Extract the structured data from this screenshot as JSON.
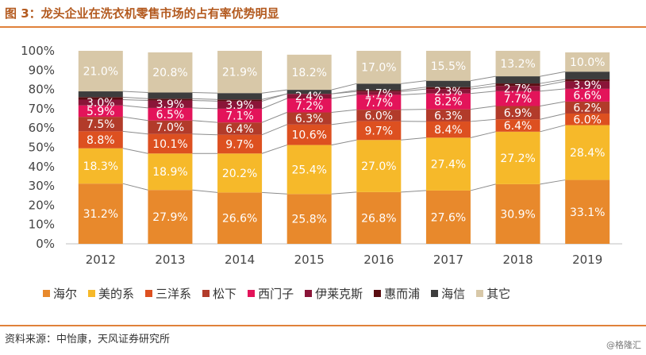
{
  "header": {
    "title": "图 3：龙头企业在洗衣机零售市场的占有率优势明显"
  },
  "footer": {
    "source": "资料来源：中怡康，天风证券研究所",
    "watermark": "@格隆汇"
  },
  "chart_data": {
    "type": "bar",
    "stacked": true,
    "title": "",
    "xlabel": "",
    "ylabel": "",
    "ylim": [
      0,
      100
    ],
    "yticks": [
      "0%",
      "10%",
      "20%",
      "30%",
      "40%",
      "50%",
      "60%",
      "70%",
      "80%",
      "90%",
      "100%"
    ],
    "categories": [
      "2012",
      "2013",
      "2014",
      "2015",
      "2016",
      "2017",
      "2018",
      "2019"
    ],
    "series": [
      {
        "name": "海尔",
        "color": "#e8892c",
        "label_color": "#ffffff",
        "values": [
          31.2,
          27.9,
          26.6,
          25.8,
          26.8,
          27.6,
          30.9,
          33.1
        ],
        "labels": [
          "31.2%",
          "27.9%",
          "26.6%",
          "25.8%",
          "26.8%",
          "27.6%",
          "30.9%",
          "33.1%"
        ]
      },
      {
        "name": "美的系",
        "color": "#f6b92a",
        "label_color": "#ffffff",
        "values": [
          18.3,
          18.9,
          20.2,
          25.4,
          27.0,
          27.4,
          27.2,
          28.4
        ],
        "labels": [
          "18.3%",
          "18.9%",
          "20.2%",
          "25.4%",
          "27.0%",
          "27.4%",
          "27.2%",
          "28.4%"
        ]
      },
      {
        "name": "三洋系",
        "color": "#dd5020",
        "label_color": "#ffffff",
        "values": [
          8.8,
          10.1,
          9.7,
          10.6,
          9.7,
          8.4,
          6.4,
          6.0
        ],
        "labels": [
          "8.8%",
          "10.1%",
          "9.7%",
          "10.6%",
          "9.7%",
          "8.4%",
          "6.4%",
          "6.0%"
        ]
      },
      {
        "name": "松下",
        "color": "#b23b2a",
        "label_color": "#ffffff",
        "values": [
          7.5,
          7.0,
          6.4,
          6.3,
          6.0,
          6.3,
          6.9,
          6.2
        ],
        "labels": [
          "7.5%",
          "7.0%",
          "6.4%",
          "6.3%",
          "6.0%",
          "6.3%",
          "6.9%",
          "6.2%"
        ]
      },
      {
        "name": "西门子",
        "color": "#e3145a",
        "label_color": "#ffffff",
        "values": [
          5.9,
          6.5,
          7.1,
          7.2,
          7.7,
          8.2,
          7.7,
          6.6
        ],
        "labels": [
          "5.9%",
          "6.5%",
          "7.1%",
          "7.2%",
          "7.7%",
          "8.2%",
          "7.7%",
          "6.6%"
        ]
      },
      {
        "name": "伊莱克斯",
        "color": "#8a1538",
        "label_color": "#ffffff",
        "values": [
          3.0,
          3.9,
          3.9,
          2.4,
          1.7,
          2.3,
          2.7,
          3.9
        ],
        "labels": [
          "3.0%",
          "3.9%",
          "3.9%",
          "2.4%",
          "1.7%",
          "2.3%",
          "2.7%",
          "3.9%"
        ]
      },
      {
        "name": "惠而浦",
        "color": "#5a0e12",
        "label_color": "#ffffff",
        "values": [
          1.3,
          0.9,
          0.9,
          0.0,
          0.7,
          1.0,
          1.3,
          1.0
        ],
        "labels": [
          "",
          "",
          "",
          "",
          "",
          "",
          "",
          ""
        ]
      },
      {
        "name": "海信",
        "color": "#3d3d3d",
        "label_color": "#ffffff",
        "values": [
          3.0,
          3.2,
          3.3,
          2.1,
          3.4,
          3.3,
          3.7,
          4.0
        ],
        "labels": [
          "",
          "",
          "",
          "",
          "",
          "",
          "",
          ""
        ]
      },
      {
        "name": "其它",
        "color": "#d8c8a8",
        "label_color": "#ffffff",
        "values": [
          21.0,
          20.8,
          21.9,
          18.2,
          17.0,
          15.5,
          13.2,
          10.0
        ],
        "labels": [
          "21.0%",
          "20.8%",
          "21.9%",
          "18.2%",
          "17.0%",
          "15.5%",
          "13.2%",
          "10.0%"
        ]
      }
    ],
    "connector_lines": true,
    "grid": false,
    "legend_position": "bottom"
  }
}
